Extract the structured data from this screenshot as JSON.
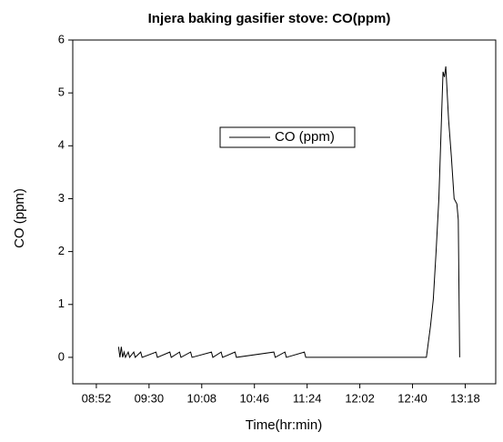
{
  "chart_data": {
    "type": "line",
    "title": "Injera baking gasifier stove: CO(ppm)",
    "x_label": "Time(hr:min)",
    "y_label": "CO (ppm)",
    "x": [
      "09:08",
      "09:09",
      "09:10",
      "09:11",
      "09:12",
      "09:13",
      "09:15",
      "09:16",
      "09:19",
      "09:20",
      "09:24",
      "09:25",
      "09:35",
      "09:36",
      "09:45",
      "09:46",
      "09:52",
      "09:53",
      "10:00",
      "10:01",
      "10:15",
      "10:16",
      "10:22",
      "10:23",
      "10:32",
      "10:33",
      "11:00",
      "11:01",
      "11:08",
      "11:09",
      "11:22",
      "11:23",
      "12:50",
      "12:51",
      "12:53",
      "12:55",
      "12:57",
      "12:59",
      "13:00",
      "13:01",
      "13:02",
      "13:03",
      "13:04",
      "13:05",
      "13:06",
      "13:08",
      "13:10",
      "13:12",
      "13:13",
      "13:14"
    ],
    "series": [
      {
        "name": "CO (ppm)",
        "color": "#000000",
        "values": [
          0.2,
          0,
          0.2,
          0,
          0.1,
          0,
          0.1,
          0,
          0.1,
          0,
          0.1,
          0,
          0.1,
          0,
          0.1,
          0,
          0.1,
          0,
          0.1,
          0,
          0.1,
          0,
          0.1,
          0,
          0.1,
          0,
          0.1,
          0,
          0.1,
          0,
          0.1,
          0,
          0,
          0.2,
          0.6,
          1.1,
          2.0,
          3.0,
          3.8,
          4.6,
          5.4,
          5.3,
          5.5,
          5.0,
          4.5,
          3.8,
          3.0,
          2.9,
          2.6,
          0
        ]
      }
    ],
    "xlim": [
      "08:35",
      "13:40"
    ],
    "xticks": [
      "08:52",
      "09:30",
      "10:08",
      "10:46",
      "11:24",
      "12:02",
      "12:40",
      "13:18"
    ],
    "ylim": [
      -0.5,
      6
    ],
    "yticks": [
      0,
      1,
      2,
      3,
      4,
      5,
      6
    ],
    "legend": "center"
  }
}
